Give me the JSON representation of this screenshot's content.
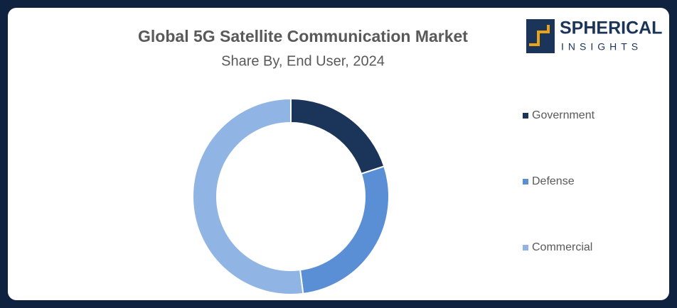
{
  "chart_data": {
    "type": "donut",
    "title": "Global 5G Satellite Communication Market",
    "subtitle": "Share By, End User, 2024",
    "categories": [
      "Government",
      "Defense",
      "Commercial"
    ],
    "values": [
      20,
      28,
      52
    ],
    "colors": [
      "#1b3459",
      "#5a8fd5",
      "#90b5e4"
    ]
  },
  "logo": {
    "name": "SPHERICAL",
    "tagline": "INSIGHTS"
  }
}
